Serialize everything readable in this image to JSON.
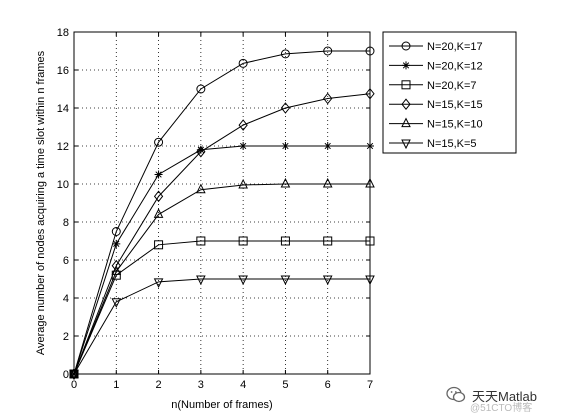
{
  "chart_data": {
    "type": "line",
    "title": "",
    "xlabel": "n(Number of frames)",
    "ylabel": "Average number of nodes acquiring a time slot within n frames",
    "xlim": [
      0,
      7
    ],
    "ylim": [
      0,
      18
    ],
    "xticks": [
      0,
      1,
      2,
      3,
      4,
      5,
      6,
      7
    ],
    "yticks": [
      0,
      2,
      4,
      6,
      8,
      10,
      12,
      14,
      16,
      18
    ],
    "grid": true,
    "legend_position": "outside top-right",
    "color": "#000000",
    "x": [
      0,
      1,
      2,
      3,
      4,
      5,
      6,
      7
    ],
    "series": [
      {
        "name": "N=20,K=17",
        "marker": "circle",
        "values": [
          0,
          7.5,
          12.2,
          15.0,
          16.35,
          16.85,
          17.0,
          17.0
        ]
      },
      {
        "name": "N=20,K=12",
        "marker": "star",
        "values": [
          0,
          6.85,
          10.5,
          11.8,
          12.0,
          12.0,
          12.0,
          12.0
        ]
      },
      {
        "name": "N=20,K=7",
        "marker": "square",
        "values": [
          0,
          5.2,
          6.8,
          7.0,
          7.0,
          7.0,
          7.0,
          7.0
        ]
      },
      {
        "name": "N=15,K=15",
        "marker": "diamond",
        "values": [
          0,
          5.7,
          9.35,
          11.7,
          13.1,
          14.0,
          14.5,
          14.75
        ]
      },
      {
        "name": "N=15,K=10",
        "marker": "triangle-up",
        "values": [
          0,
          5.4,
          8.4,
          9.7,
          9.95,
          10.0,
          10.0,
          10.0
        ]
      },
      {
        "name": "N=15,K=5",
        "marker": "triangle-down",
        "values": [
          0,
          3.8,
          4.85,
          5.0,
          5.0,
          5.0,
          5.0,
          5.0
        ]
      }
    ]
  },
  "watermark": {
    "text": "天天Matlab",
    "subtext": "@51CTO博客",
    "icon": "wechat-logo-icon"
  }
}
